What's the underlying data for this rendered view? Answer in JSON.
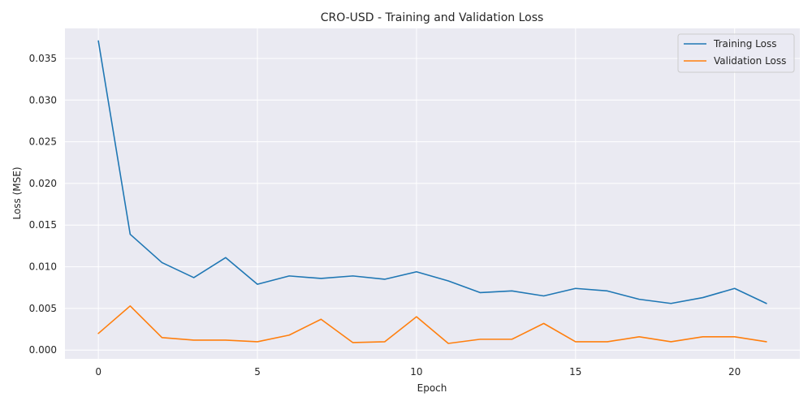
{
  "chart_data": {
    "type": "line",
    "title": "CRO-USD - Training and Validation Loss",
    "xlabel": "Epoch",
    "ylabel": "Loss (MSE)",
    "x": [
      0,
      1,
      2,
      3,
      4,
      5,
      6,
      7,
      8,
      9,
      10,
      11,
      12,
      13,
      14,
      15,
      16,
      17,
      18,
      19,
      20,
      21
    ],
    "xlim": [
      -1.05,
      22.05
    ],
    "ylim": [
      -0.00105,
      0.0386
    ],
    "xticks": [
      0,
      5,
      10,
      15,
      20
    ],
    "xtick_labels": [
      "0",
      "5",
      "10",
      "15",
      "20"
    ],
    "yticks": [
      0,
      0.005,
      0.01,
      0.015,
      0.02,
      0.025,
      0.03,
      0.035
    ],
    "ytick_labels": [
      "0.000",
      "0.005",
      "0.010",
      "0.015",
      "0.020",
      "0.025",
      "0.030",
      "0.035"
    ],
    "grid": true,
    "legend_position": "top-right",
    "series": [
      {
        "name": "Training Loss",
        "color": "#1f77b4",
        "values": [
          0.0371,
          0.0139,
          0.0105,
          0.0087,
          0.0111,
          0.0079,
          0.0089,
          0.0086,
          0.0089,
          0.0085,
          0.0094,
          0.0083,
          0.0069,
          0.0071,
          0.0065,
          0.0074,
          0.0071,
          0.0061,
          0.0056,
          0.0063,
          0.0074,
          0.0056
        ]
      },
      {
        "name": "Validation Loss",
        "color": "#ff7f0e",
        "values": [
          0.002,
          0.0053,
          0.0015,
          0.0012,
          0.0012,
          0.001,
          0.0018,
          0.0037,
          0.0009,
          0.001,
          0.004,
          0.0008,
          0.0013,
          0.0013,
          0.0032,
          0.001,
          0.001,
          0.0016,
          0.001,
          0.0016,
          0.0016,
          0.001
        ]
      }
    ]
  }
}
